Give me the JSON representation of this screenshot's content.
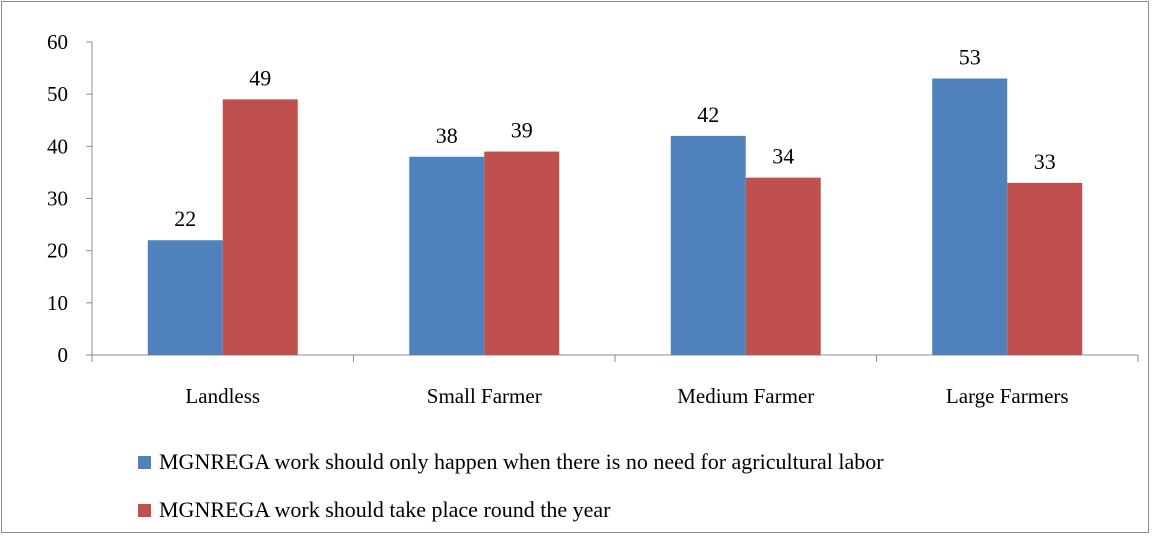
{
  "chart_data": {
    "type": "bar",
    "title": "",
    "xlabel": "",
    "ylabel": "",
    "ylim": [
      0,
      60
    ],
    "yticks": [
      0,
      10,
      20,
      30,
      40,
      50,
      60
    ],
    "grid": false,
    "legend_position": "bottom",
    "categories": [
      "Landless",
      "Small Farmer",
      "Medium Farmer",
      "Large Farmers"
    ],
    "series": [
      {
        "name": "MGNREGA work should only happen when there is no need for agricultural labor",
        "color": "#4f81bd",
        "values": [
          22,
          38,
          42,
          53
        ]
      },
      {
        "name": "MGNREGA work should take place round the year",
        "color": "#c0504d",
        "values": [
          49,
          39,
          34,
          33
        ]
      }
    ]
  }
}
